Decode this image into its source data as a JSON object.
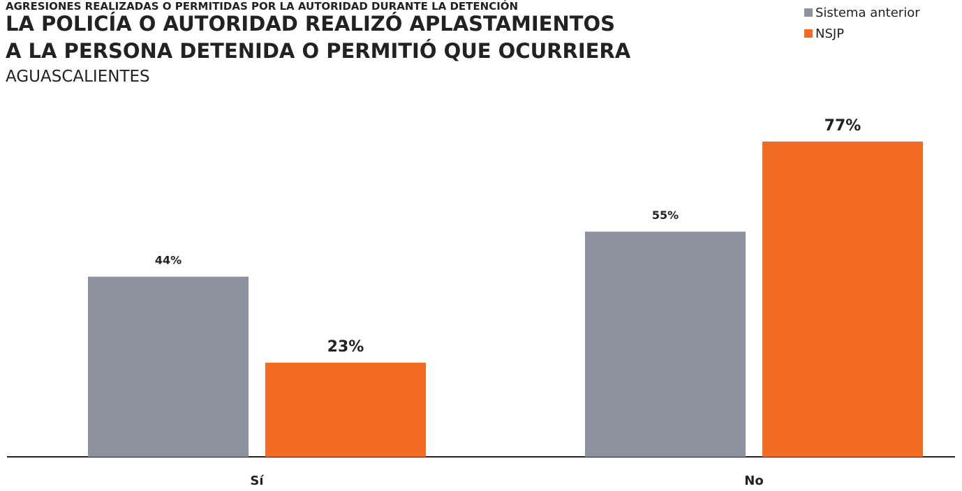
{
  "chart_data": {
    "type": "bar",
    "supertitle": "AGRESIONES REALIZADAS O PERMITIDAS POR LA AUTORIDAD DURANTE LA DETENCIÓN",
    "title": [
      "LA POLICÍA O AUTORIDAD REALIZÓ APLASTAMIENTOS",
      "A LA PERSONA DETENIDA O PERMITIÓ QUE OCURRIERA"
    ],
    "subtitle": "AGUASCALIENTES",
    "categories": [
      "Sí",
      "No"
    ],
    "series": [
      {
        "name": "Sistema anterior",
        "color": "#8e929e",
        "values": [
          44,
          55
        ],
        "value_labels": [
          "44%",
          "55%"
        ]
      },
      {
        "name": "NSJP",
        "color": "#f26c23",
        "values": [
          23,
          77
        ],
        "value_labels": [
          "23%",
          "77%"
        ]
      }
    ],
    "legend": "top-right"
  }
}
